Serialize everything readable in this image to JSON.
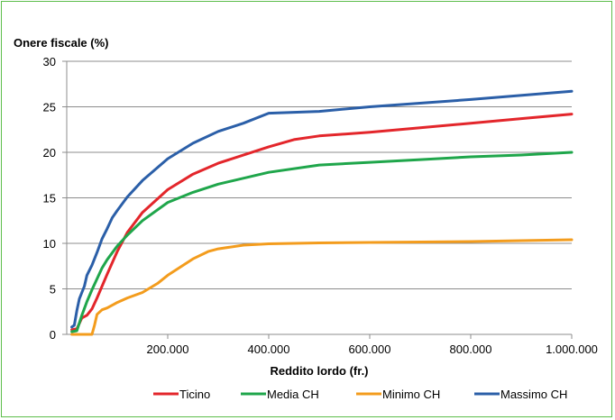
{
  "chart_data": {
    "type": "line",
    "ylabel": "Onere fiscale (%)",
    "xlabel": "Reddito lordo (fr.)",
    "xlim": [
      0,
      1000000
    ],
    "ylim": [
      0,
      30
    ],
    "x_ticks": [
      200000,
      400000,
      600000,
      800000,
      1000000
    ],
    "x_tick_labels": [
      "200.000",
      "400.000",
      "600.000",
      "800.000",
      "1.000.000"
    ],
    "y_ticks": [
      0,
      5,
      10,
      15,
      20,
      25,
      30
    ],
    "y_tick_labels": [
      "0",
      "5",
      "10",
      "15",
      "20",
      "25",
      "30"
    ],
    "grid": "horizontal",
    "legend_position": "bottom",
    "series": [
      {
        "name": "Ticino",
        "color": "#e3262b",
        "points": [
          [
            10000,
            0.5
          ],
          [
            20000,
            0.6
          ],
          [
            30000,
            1.8
          ],
          [
            40000,
            2.1
          ],
          [
            50000,
            2.8
          ],
          [
            60000,
            4.0
          ],
          [
            80000,
            6.6
          ],
          [
            100000,
            9.1
          ],
          [
            120000,
            11.2
          ],
          [
            150000,
            13.4
          ],
          [
            200000,
            15.9
          ],
          [
            250000,
            17.6
          ],
          [
            300000,
            18.8
          ],
          [
            400000,
            20.6
          ],
          [
            450000,
            21.4
          ],
          [
            500000,
            21.8
          ],
          [
            600000,
            22.2
          ],
          [
            700000,
            22.7
          ],
          [
            800000,
            23.2
          ],
          [
            900000,
            23.7
          ],
          [
            1000000,
            24.2
          ]
        ]
      },
      {
        "name": "Media CH",
        "color": "#1fa64b",
        "points": [
          [
            10000,
            0.3
          ],
          [
            20000,
            0.4
          ],
          [
            30000,
            2.1
          ],
          [
            40000,
            3.6
          ],
          [
            50000,
            4.9
          ],
          [
            60000,
            6.1
          ],
          [
            70000,
            7.3
          ],
          [
            80000,
            8.2
          ],
          [
            100000,
            9.7
          ],
          [
            120000,
            10.9
          ],
          [
            150000,
            12.5
          ],
          [
            200000,
            14.5
          ],
          [
            250000,
            15.6
          ],
          [
            300000,
            16.5
          ],
          [
            400000,
            17.8
          ],
          [
            500000,
            18.6
          ],
          [
            600000,
            18.9
          ],
          [
            700000,
            19.2
          ],
          [
            800000,
            19.5
          ],
          [
            900000,
            19.7
          ],
          [
            1000000,
            20.0
          ]
        ]
      },
      {
        "name": "Minimo CH",
        "color": "#f39c1d",
        "points": [
          [
            10000,
            0.0
          ],
          [
            40000,
            0.0
          ],
          [
            50000,
            0.0
          ],
          [
            55000,
            1.0
          ],
          [
            60000,
            2.2
          ],
          [
            70000,
            2.7
          ],
          [
            80000,
            2.9
          ],
          [
            100000,
            3.5
          ],
          [
            120000,
            4.0
          ],
          [
            150000,
            4.6
          ],
          [
            180000,
            5.6
          ],
          [
            200000,
            6.5
          ],
          [
            250000,
            8.3
          ],
          [
            280000,
            9.1
          ],
          [
            300000,
            9.4
          ],
          [
            350000,
            9.8
          ],
          [
            400000,
            9.95
          ],
          [
            500000,
            10.05
          ],
          [
            600000,
            10.1
          ],
          [
            800000,
            10.2
          ],
          [
            1000000,
            10.4
          ]
        ]
      },
      {
        "name": "Massimo CH",
        "color": "#2b5fa8",
        "points": [
          [
            10000,
            0.8
          ],
          [
            15000,
            1.0
          ],
          [
            20000,
            2.6
          ],
          [
            25000,
            3.9
          ],
          [
            30000,
            4.6
          ],
          [
            35000,
            5.3
          ],
          [
            40000,
            6.5
          ],
          [
            50000,
            7.6
          ],
          [
            60000,
            9.0
          ],
          [
            70000,
            10.5
          ],
          [
            80000,
            11.6
          ],
          [
            90000,
            12.8
          ],
          [
            100000,
            13.6
          ],
          [
            120000,
            15.1
          ],
          [
            150000,
            16.9
          ],
          [
            200000,
            19.3
          ],
          [
            250000,
            21.0
          ],
          [
            300000,
            22.3
          ],
          [
            350000,
            23.2
          ],
          [
            400000,
            24.3
          ],
          [
            450000,
            24.4
          ],
          [
            500000,
            24.5
          ],
          [
            600000,
            25.0
          ],
          [
            800000,
            25.8
          ],
          [
            1000000,
            26.7
          ]
        ]
      }
    ]
  }
}
